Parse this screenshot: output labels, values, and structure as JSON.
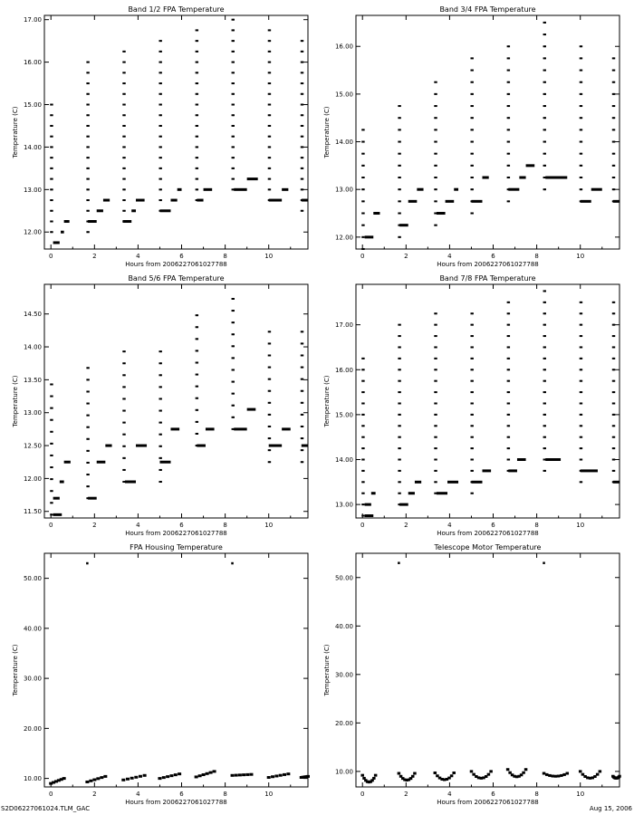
{
  "footer": {
    "left": "S2D06227061024.TLM_GAC",
    "right": "Aug 15, 2006"
  },
  "chart_data": [
    {
      "type": "scatter",
      "title": "Band 1/2 FPA Temperature",
      "xlabel": "Hours from 2006227061027788",
      "ylabel": "Temperature (C)",
      "xlim": [
        -0.3,
        11.8
      ],
      "ylim": [
        11.6,
        17.1
      ],
      "x_ticks": [
        0,
        2,
        4,
        6,
        8,
        10
      ],
      "x_tick_labels": [
        "0",
        "2",
        "4",
        "6",
        "8",
        "10"
      ],
      "y_ticks": [
        12.0,
        13.0,
        14.0,
        15.0,
        16.0,
        17.0
      ],
      "y_tick_labels": [
        "12.00",
        "13.00",
        "14.00",
        "15.00",
        "16.00",
        "17.00"
      ],
      "series": [
        {
          "cycles": [
            {
              "x": 0.0,
              "high": 15.0,
              "low": 12.0
            },
            {
              "x": 1.67,
              "high": 16.0,
              "low": 12.0
            },
            {
              "x": 3.33,
              "high": 16.25,
              "low": 12.25
            },
            {
              "x": 5.0,
              "high": 16.5,
              "low": 12.5
            },
            {
              "x": 6.67,
              "high": 16.75,
              "low": 12.75
            },
            {
              "x": 8.33,
              "high": 17.0,
              "low": 13.0
            },
            {
              "x": 10.0,
              "high": 16.75,
              "low": 12.75
            },
            {
              "x": 11.5,
              "high": 16.5,
              "low": 12.5
            }
          ],
          "step": 0.25,
          "flats": [
            {
              "x0": 0.1,
              "x1": 0.4,
              "y": 11.75
            },
            {
              "x0": 0.45,
              "x1": 0.6,
              "y": 12.0
            },
            {
              "x0": 0.6,
              "x1": 0.85,
              "y": 12.25
            },
            {
              "x0": 1.7,
              "x1": 2.1,
              "y": 12.25
            },
            {
              "x0": 2.1,
              "x1": 2.4,
              "y": 12.5
            },
            {
              "x0": 2.4,
              "x1": 2.7,
              "y": 12.75
            },
            {
              "x0": 3.3,
              "x1": 3.7,
              "y": 12.25
            },
            {
              "x0": 3.7,
              "x1": 3.9,
              "y": 12.5
            },
            {
              "x0": 3.9,
              "x1": 4.3,
              "y": 12.75
            },
            {
              "x0": 5.0,
              "x1": 5.5,
              "y": 12.5
            },
            {
              "x0": 5.5,
              "x1": 5.8,
              "y": 12.75
            },
            {
              "x0": 5.8,
              "x1": 6.0,
              "y": 13.0
            },
            {
              "x0": 6.7,
              "x1": 7.0,
              "y": 12.75
            },
            {
              "x0": 7.0,
              "x1": 7.4,
              "y": 13.0
            },
            {
              "x0": 8.4,
              "x1": 9.0,
              "y": 13.0
            },
            {
              "x0": 9.0,
              "x1": 9.5,
              "y": 13.25
            },
            {
              "x0": 10.0,
              "x1": 10.6,
              "y": 12.75
            },
            {
              "x0": 10.6,
              "x1": 10.9,
              "y": 13.0
            },
            {
              "x0": 11.5,
              "x1": 11.8,
              "y": 12.75
            }
          ]
        }
      ]
    },
    {
      "type": "scatter",
      "title": "Band 3/4 FPA Temperature",
      "xlabel": "Hours from 2006227061027788",
      "ylabel": "Temperature (C)",
      "xlim": [
        -0.3,
        11.8
      ],
      "ylim": [
        11.75,
        16.65
      ],
      "x_ticks": [
        0,
        2,
        4,
        6,
        8,
        10
      ],
      "x_tick_labels": [
        "0",
        "2",
        "4",
        "6",
        "8",
        "10"
      ],
      "y_ticks": [
        12.0,
        13.0,
        14.0,
        15.0,
        16.0
      ],
      "y_tick_labels": [
        "12.00",
        "13.00",
        "14.00",
        "15.00",
        "16.00"
      ],
      "series": [
        {
          "cycles": [
            {
              "x": 0.0,
              "high": 14.25,
              "low": 11.75
            },
            {
              "x": 1.67,
              "high": 14.75,
              "low": 12.0
            },
            {
              "x": 3.33,
              "high": 15.25,
              "low": 12.25
            },
            {
              "x": 5.0,
              "high": 15.75,
              "low": 12.5
            },
            {
              "x": 6.67,
              "high": 16.0,
              "low": 12.75
            },
            {
              "x": 8.33,
              "high": 16.5,
              "low": 13.0
            },
            {
              "x": 10.0,
              "high": 16.0,
              "low": 12.75
            },
            {
              "x": 11.5,
              "high": 15.75,
              "low": 12.75
            }
          ],
          "step": 0.25,
          "flats": [
            {
              "x0": 0.1,
              "x1": 0.5,
              "y": 12.0
            },
            {
              "x0": 0.5,
              "x1": 0.8,
              "y": 12.5
            },
            {
              "x0": 1.7,
              "x1": 2.1,
              "y": 12.25
            },
            {
              "x0": 2.1,
              "x1": 2.5,
              "y": 12.75
            },
            {
              "x0": 2.5,
              "x1": 2.8,
              "y": 13.0
            },
            {
              "x0": 3.4,
              "x1": 3.8,
              "y": 12.5
            },
            {
              "x0": 3.8,
              "x1": 4.2,
              "y": 12.75
            },
            {
              "x0": 4.2,
              "x1": 4.4,
              "y": 13.0
            },
            {
              "x0": 5.0,
              "x1": 5.5,
              "y": 12.75
            },
            {
              "x0": 5.5,
              "x1": 5.8,
              "y": 13.25
            },
            {
              "x0": 6.7,
              "x1": 7.2,
              "y": 13.0
            },
            {
              "x0": 7.2,
              "x1": 7.5,
              "y": 13.25
            },
            {
              "x0": 7.5,
              "x1": 7.9,
              "y": 13.5
            },
            {
              "x0": 8.4,
              "x1": 9.4,
              "y": 13.25
            },
            {
              "x0": 10.0,
              "x1": 10.5,
              "y": 12.75
            },
            {
              "x0": 10.5,
              "x1": 11.0,
              "y": 13.0
            },
            {
              "x0": 11.5,
              "x1": 11.8,
              "y": 12.75
            }
          ]
        }
      ]
    },
    {
      "type": "scatter",
      "title": "Band 5/6 FPA Temperature",
      "xlabel": "Hours from 2006227061027788",
      "ylabel": "Temperature (C)",
      "xlim": [
        -0.3,
        11.8
      ],
      "ylim": [
        11.4,
        14.95
      ],
      "x_ticks": [
        0,
        2,
        4,
        6,
        8,
        10
      ],
      "x_tick_labels": [
        "0",
        "2",
        "4",
        "6",
        "8",
        "10"
      ],
      "y_ticks": [
        11.5,
        12.0,
        12.5,
        13.0,
        13.5,
        14.0,
        14.5
      ],
      "y_tick_labels": [
        "11.50",
        "12.00",
        "12.50",
        "13.00",
        "13.50",
        "14.00",
        "14.50"
      ],
      "series": [
        {
          "cycles": [
            {
              "x": 0.0,
              "high": 13.45,
              "low": 11.45
            },
            {
              "x": 1.67,
              "high": 13.85,
              "low": 11.7
            },
            {
              "x": 3.33,
              "high": 14.1,
              "low": 11.95
            },
            {
              "x": 5.0,
              "high": 14.1,
              "low": 11.95
            },
            {
              "x": 6.67,
              "high": 14.65,
              "low": 12.5
            },
            {
              "x": 8.33,
              "high": 14.9,
              "low": 12.75
            },
            {
              "x": 10.0,
              "high": 14.4,
              "low": 12.25
            },
            {
              "x": 11.5,
              "high": 14.4,
              "low": 12.25
            }
          ],
          "step": 0.18,
          "flats": [
            {
              "x0": 0.1,
              "x1": 0.5,
              "y": 11.45
            },
            {
              "x0": 0.1,
              "x1": 0.4,
              "y": 11.7
            },
            {
              "x0": 0.4,
              "x1": 0.6,
              "y": 11.95
            },
            {
              "x0": 0.6,
              "x1": 0.9,
              "y": 12.25
            },
            {
              "x0": 1.7,
              "x1": 2.1,
              "y": 11.7
            },
            {
              "x0": 2.1,
              "x1": 2.5,
              "y": 12.25
            },
            {
              "x0": 2.5,
              "x1": 2.8,
              "y": 12.5
            },
            {
              "x0": 3.4,
              "x1": 3.9,
              "y": 11.95
            },
            {
              "x0": 3.9,
              "x1": 4.4,
              "y": 12.5
            },
            {
              "x0": 5.0,
              "x1": 5.5,
              "y": 12.25
            },
            {
              "x0": 5.5,
              "x1": 5.9,
              "y": 12.75
            },
            {
              "x0": 6.7,
              "x1": 7.1,
              "y": 12.5
            },
            {
              "x0": 7.1,
              "x1": 7.5,
              "y": 12.75
            },
            {
              "x0": 8.4,
              "x1": 9.0,
              "y": 12.75
            },
            {
              "x0": 9.0,
              "x1": 9.4,
              "y": 13.05
            },
            {
              "x0": 10.0,
              "x1": 10.6,
              "y": 12.5
            },
            {
              "x0": 10.6,
              "x1": 11.0,
              "y": 12.75
            },
            {
              "x0": 11.5,
              "x1": 11.8,
              "y": 12.5
            }
          ]
        }
      ]
    },
    {
      "type": "scatter",
      "title": "Band 7/8 FPA Temperature",
      "xlabel": "Hours from 2006227061027788",
      "ylabel": "Temperature (C)",
      "xlim": [
        -0.3,
        11.8
      ],
      "ylim": [
        12.7,
        17.9
      ],
      "x_ticks": [
        0,
        2,
        4,
        6,
        8,
        10
      ],
      "x_tick_labels": [
        "0",
        "2",
        "4",
        "6",
        "8",
        "10"
      ],
      "y_ticks": [
        13.0,
        14.0,
        15.0,
        16.0,
        17.0
      ],
      "y_tick_labels": [
        "13.00",
        "14.00",
        "15.00",
        "16.00",
        "17.00"
      ],
      "series": [
        {
          "cycles": [
            {
              "x": 0.0,
              "high": 16.25,
              "low": 12.75
            },
            {
              "x": 1.67,
              "high": 17.0,
              "low": 13.0
            },
            {
              "x": 3.33,
              "high": 17.25,
              "low": 13.25
            },
            {
              "x": 5.0,
              "high": 17.25,
              "low": 13.25
            },
            {
              "x": 6.67,
              "high": 17.5,
              "low": 13.75
            },
            {
              "x": 8.33,
              "high": 17.75,
              "low": 13.75
            },
            {
              "x": 10.0,
              "high": 17.5,
              "low": 13.5
            },
            {
              "x": 11.5,
              "high": 17.5,
              "low": 13.5
            }
          ],
          "step": 0.25,
          "flats": [
            {
              "x0": 0.1,
              "x1": 0.5,
              "y": 12.75
            },
            {
              "x0": 0.1,
              "x1": 0.4,
              "y": 13.0
            },
            {
              "x0": 0.4,
              "x1": 0.6,
              "y": 13.25
            },
            {
              "x0": 1.7,
              "x1": 2.1,
              "y": 13.0
            },
            {
              "x0": 2.1,
              "x1": 2.4,
              "y": 13.25
            },
            {
              "x0": 2.4,
              "x1": 2.7,
              "y": 13.5
            },
            {
              "x0": 3.4,
              "x1": 3.9,
              "y": 13.25
            },
            {
              "x0": 3.9,
              "x1": 4.4,
              "y": 13.5
            },
            {
              "x0": 5.0,
              "x1": 5.5,
              "y": 13.5
            },
            {
              "x0": 5.5,
              "x1": 5.9,
              "y": 13.75
            },
            {
              "x0": 6.7,
              "x1": 7.1,
              "y": 13.75
            },
            {
              "x0": 7.1,
              "x1": 7.5,
              "y": 14.0
            },
            {
              "x0": 8.4,
              "x1": 9.1,
              "y": 14.0
            },
            {
              "x0": 10.0,
              "x1": 10.8,
              "y": 13.75
            },
            {
              "x0": 11.5,
              "x1": 11.8,
              "y": 13.5
            }
          ]
        }
      ]
    },
    {
      "type": "scatter",
      "title": "FPA Housing Temperature",
      "xlabel": "Hours from 2006227061027788",
      "ylabel": "Temperature (C)",
      "xlim": [
        -0.3,
        11.8
      ],
      "ylim": [
        8.3,
        55
      ],
      "x_ticks": [
        0,
        2,
        4,
        6,
        8,
        10
      ],
      "x_tick_labels": [
        "0",
        "2",
        "4",
        "6",
        "8",
        "10"
      ],
      "y_ticks": [
        10,
        20,
        30,
        40,
        50
      ],
      "y_tick_labels": [
        "10.00",
        "20.00",
        "30.00",
        "40.00",
        "50.00"
      ],
      "series": [
        {
          "outliers": [
            {
              "x": 1.67,
              "y": 53.0
            },
            {
              "x": 8.33,
              "y": 53.0
            }
          ],
          "ramps": [
            {
              "x0": 0.0,
              "x1": 0.6,
              "y0": 9.0,
              "y1": 10.0
            },
            {
              "x0": 1.67,
              "x1": 2.5,
              "y0": 9.3,
              "y1": 10.4
            },
            {
              "x0": 3.33,
              "x1": 4.3,
              "y0": 9.7,
              "y1": 10.6
            },
            {
              "x0": 5.0,
              "x1": 5.9,
              "y0": 10.0,
              "y1": 10.9
            },
            {
              "x0": 6.67,
              "x1": 7.5,
              "y0": 10.3,
              "y1": 11.4
            },
            {
              "x0": 8.33,
              "x1": 9.2,
              "y0": 10.6,
              "y1": 10.8
            },
            {
              "x0": 10.0,
              "x1": 10.9,
              "y0": 10.2,
              "y1": 10.9
            },
            {
              "x0": 11.5,
              "x1": 11.8,
              "y0": 10.2,
              "y1": 10.4
            }
          ]
        }
      ]
    },
    {
      "type": "scatter",
      "title": "Telescope Motor Temperature",
      "xlabel": "Hours from 2006227061027788",
      "ylabel": "Temperature (C)",
      "xlim": [
        -0.3,
        11.8
      ],
      "ylim": [
        6.8,
        55
      ],
      "x_ticks": [
        0,
        2,
        4,
        6,
        8,
        10
      ],
      "x_tick_labels": [
        "0",
        "2",
        "4",
        "6",
        "8",
        "10"
      ],
      "y_ticks": [
        10,
        20,
        30,
        40,
        50
      ],
      "y_tick_labels": [
        "10.00",
        "20.00",
        "30.00",
        "40.00",
        "50.00"
      ],
      "series": [
        {
          "outliers": [
            {
              "x": 1.67,
              "y": 53.0
            },
            {
              "x": 8.33,
              "y": 53.0
            }
          ],
          "dips": [
            {
              "x0": 0.0,
              "x1": 0.6,
              "y_edge": 9.2,
              "y_min": 7.8
            },
            {
              "x0": 1.67,
              "x1": 2.4,
              "y_edge": 9.6,
              "y_min": 8.2
            },
            {
              "x0": 3.33,
              "x1": 4.2,
              "y_edge": 9.7,
              "y_min": 8.3
            },
            {
              "x0": 5.0,
              "x1": 5.9,
              "y_edge": 10.0,
              "y_min": 8.6
            },
            {
              "x0": 6.67,
              "x1": 7.5,
              "y_edge": 10.4,
              "y_min": 8.9
            },
            {
              "x0": 8.33,
              "x1": 9.4,
              "y_edge": 9.6,
              "y_min": 9.0
            },
            {
              "x0": 10.0,
              "x1": 10.9,
              "y_edge": 10.0,
              "y_min": 8.6
            },
            {
              "x0": 11.5,
              "x1": 11.8,
              "y_edge": 9.0,
              "y_min": 8.6
            }
          ]
        }
      ]
    }
  ]
}
